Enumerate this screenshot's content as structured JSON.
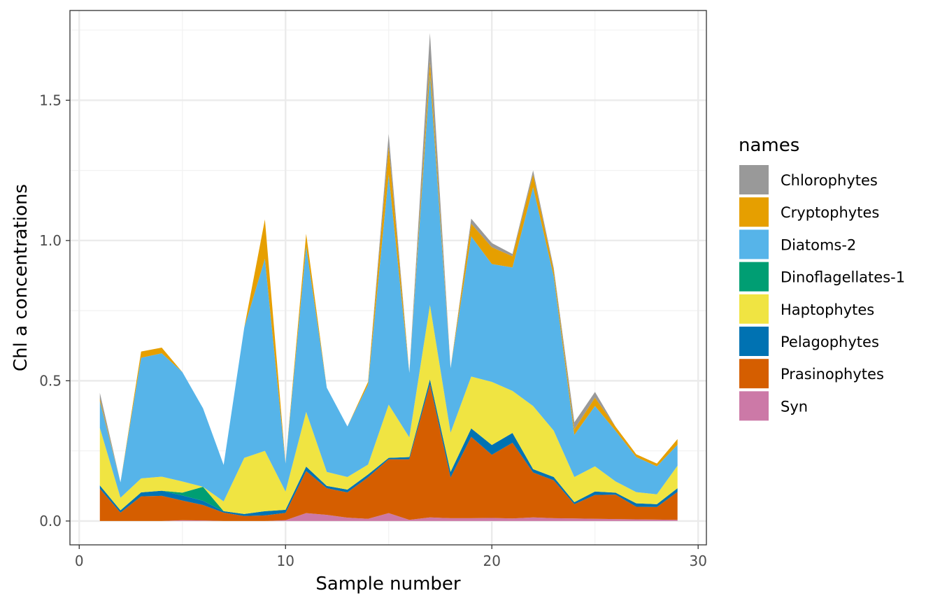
{
  "chart_data": {
    "type": "area",
    "stacked": true,
    "xlabel": "Sample number",
    "ylabel": "Chl a concentrations",
    "xlim": [
      -0.45,
      30.4
    ],
    "ylim": [
      -0.085,
      1.82
    ],
    "xticks": [
      0,
      10,
      20,
      30
    ],
    "yticks": [
      0.0,
      0.5,
      1.0,
      1.5
    ],
    "ytick_labels": [
      "0.0",
      "0.5",
      "1.0",
      "1.5"
    ],
    "grid": true,
    "legend": {
      "title": "names",
      "placement": "right"
    },
    "x": [
      1,
      2,
      3,
      4,
      5,
      6,
      7,
      8,
      9,
      10,
      11,
      12,
      13,
      14,
      15,
      16,
      17,
      18,
      19,
      20,
      21,
      22,
      23,
      24,
      25,
      26,
      27,
      28,
      29
    ],
    "series": [
      {
        "name": "Syn",
        "color": "#CC79A7",
        "values": [
          0.0,
          0.0,
          0.0,
          0.0,
          0.003,
          0.002,
          0.0,
          0.0,
          0.0,
          0.003,
          0.028,
          0.022,
          0.012,
          0.008,
          0.028,
          0.004,
          0.013,
          0.01,
          0.01,
          0.011,
          0.009,
          0.013,
          0.01,
          0.009,
          0.008,
          0.007,
          0.006,
          0.005,
          0.004
        ]
      },
      {
        "name": "Prasinophytes",
        "color": "#D55E00",
        "values": [
          0.115,
          0.03,
          0.088,
          0.09,
          0.07,
          0.055,
          0.03,
          0.018,
          0.02,
          0.026,
          0.15,
          0.095,
          0.09,
          0.148,
          0.192,
          0.216,
          0.475,
          0.145,
          0.29,
          0.225,
          0.27,
          0.16,
          0.135,
          0.051,
          0.085,
          0.087,
          0.045,
          0.045,
          0.1
        ]
      },
      {
        "name": "Pelagophytes",
        "color": "#0072B2",
        "values": [
          0.012,
          0.008,
          0.014,
          0.018,
          0.018,
          0.015,
          0.005,
          0.007,
          0.015,
          0.011,
          0.016,
          0.008,
          0.01,
          0.01,
          0.005,
          0.008,
          0.017,
          0.02,
          0.03,
          0.035,
          0.035,
          0.012,
          0.012,
          0.007,
          0.012,
          0.007,
          0.012,
          0.01,
          0.013
        ]
      },
      {
        "name": "Dinoflagellates-1",
        "color": "#009E73",
        "values": [
          0.0,
          0.0,
          0.0,
          0.0,
          0.01,
          0.05,
          0.0,
          0.0,
          0.0,
          0.0,
          0.0,
          0.0,
          0.0,
          0.0,
          0.0,
          0.0,
          0.0,
          0.0,
          0.0,
          0.0,
          0.0,
          0.0,
          0.0,
          0.0,
          0.0,
          0.0,
          0.0,
          0.0,
          0.0
        ]
      },
      {
        "name": "Haptophytes",
        "color": "#F0E442",
        "values": [
          0.205,
          0.045,
          0.05,
          0.05,
          0.04,
          0.0,
          0.035,
          0.2,
          0.215,
          0.065,
          0.195,
          0.05,
          0.045,
          0.035,
          0.19,
          0.07,
          0.265,
          0.14,
          0.185,
          0.225,
          0.15,
          0.225,
          0.165,
          0.09,
          0.09,
          0.04,
          0.04,
          0.035,
          0.08
        ]
      },
      {
        "name": "Diatoms-2",
        "color": "#56B4E9",
        "values": [
          0.095,
          0.055,
          0.43,
          0.44,
          0.39,
          0.28,
          0.13,
          0.465,
          0.685,
          0.1,
          0.59,
          0.3,
          0.18,
          0.285,
          0.82,
          0.23,
          0.82,
          0.23,
          0.5,
          0.42,
          0.44,
          0.78,
          0.55,
          0.15,
          0.215,
          0.18,
          0.125,
          0.1,
          0.075
        ]
      },
      {
        "name": "Cryptophytes",
        "color": "#E69F00",
        "values": [
          0.01,
          0.0,
          0.022,
          0.02,
          0.0,
          0.0,
          0.0,
          0.0,
          0.14,
          0.0,
          0.045,
          0.0,
          0.0,
          0.01,
          0.1,
          0.0,
          0.05,
          0.0,
          0.045,
          0.06,
          0.04,
          0.045,
          0.02,
          0.02,
          0.03,
          0.015,
          0.01,
          0.01,
          0.02
        ]
      },
      {
        "name": "Chlorophytes",
        "color": "#999999",
        "values": [
          0.02,
          0.0,
          0.0,
          0.0,
          0.0,
          0.0,
          0.0,
          0.0,
          0.0,
          0.0,
          0.0,
          0.0,
          0.0,
          0.0,
          0.045,
          0.0,
          0.1,
          0.0,
          0.018,
          0.015,
          0.008,
          0.015,
          0.01,
          0.025,
          0.02,
          0.0,
          0.0,
          0.0,
          0.0
        ]
      }
    ],
    "legend_order": [
      "Chlorophytes",
      "Cryptophytes",
      "Diatoms-2",
      "Dinoflagellates-1",
      "Haptophytes",
      "Pelagophytes",
      "Prasinophytes",
      "Syn"
    ]
  }
}
